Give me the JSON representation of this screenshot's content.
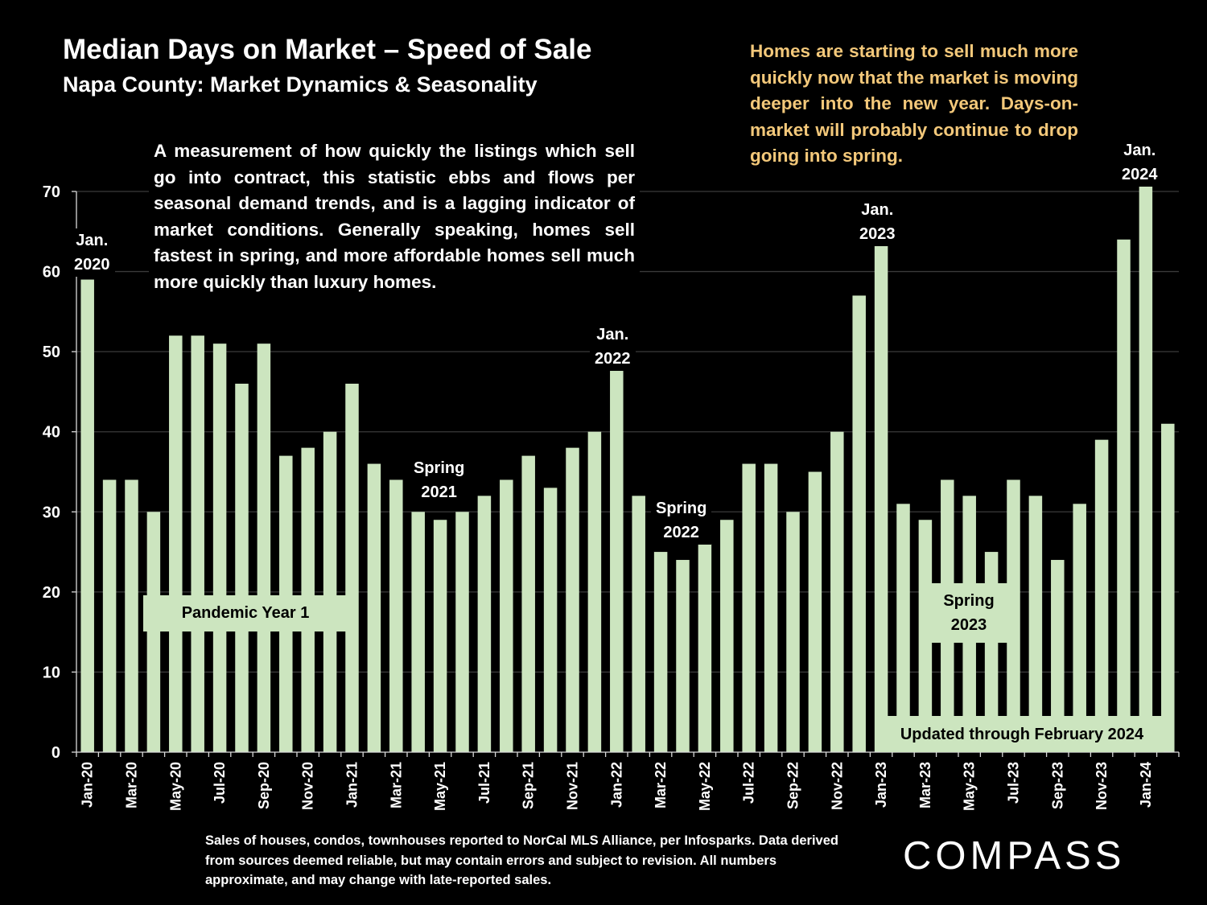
{
  "header": {
    "title": "Median Days on Market – Speed of Sale",
    "subtitle": "Napa County: Market Dynamics & Seasonality"
  },
  "note": {
    "text": "A measurement of how quickly the listings which sell go into contract, this statistic ebbs and flows per seasonal demand trends, and is a lagging indicator of market conditions. Generally speaking, homes sell fastest in spring, and more affordable homes sell much more quickly than luxury homes."
  },
  "callout": {
    "text": "Homes are starting to sell much more quickly now that the market is moving deeper into the new year. Days-on-market will probably continue to drop going into spring."
  },
  "annotations": {
    "jan2020": [
      "Jan.",
      "2020"
    ],
    "spring2021": [
      "Spring",
      "2021"
    ],
    "jan2022": [
      "Jan.",
      "2022"
    ],
    "spring2022": [
      "Spring",
      "2022"
    ],
    "jan2023": [
      "Jan.",
      "2023"
    ],
    "spring2023": [
      "Spring",
      "2023"
    ],
    "jan2024": [
      "Jan.",
      "2024"
    ],
    "pandemic": "Pandemic Year 1",
    "updated": "Updated through February 2024"
  },
  "footnote": {
    "text": "Sales of houses, condos, townhouses reported to NorCal MLS Alliance, per Infosparks. Data derived from sources deemed reliable, but may contain errors and subject to revision. All numbers approximate, and may change with late-reported sales."
  },
  "brand": {
    "logo": "COMPASS"
  },
  "colors": {
    "background": "#000000",
    "bar": "#cce5bf",
    "text": "#ffffff",
    "callout": "#f3c87a",
    "gridline": "#3a3a3a"
  },
  "chart_data": {
    "type": "bar",
    "title": "Median Days on Market – Speed of Sale",
    "subtitle": "Napa County: Market Dynamics & Seasonality",
    "xlabel": "",
    "ylabel": "",
    "ylim": [
      0,
      70
    ],
    "yticks": [
      0,
      10,
      20,
      30,
      40,
      50,
      60,
      70
    ],
    "grid": true,
    "legend": "none",
    "categories": [
      "Jan-20",
      "Feb-20",
      "Mar-20",
      "Apr-20",
      "May-20",
      "Jun-20",
      "Jul-20",
      "Aug-20",
      "Sep-20",
      "Oct-20",
      "Nov-20",
      "Dec-20",
      "Jan-21",
      "Feb-21",
      "Mar-21",
      "Apr-21",
      "May-21",
      "Jun-21",
      "Jul-21",
      "Aug-21",
      "Sep-21",
      "Oct-21",
      "Nov-21",
      "Dec-21",
      "Jan-22",
      "Feb-22",
      "Mar-22",
      "Apr-22",
      "May-22",
      "Jun-22",
      "Jul-22",
      "Aug-22",
      "Sep-22",
      "Oct-22",
      "Nov-22",
      "Dec-22",
      "Jan-23",
      "Feb-23",
      "Mar-23",
      "Apr-23",
      "May-23",
      "Jun-23",
      "Jul-23",
      "Aug-23",
      "Sep-23",
      "Oct-23",
      "Nov-23",
      "Dec-23",
      "Jan-24",
      "Feb-24"
    ],
    "tick_labels": [
      "Jan-20",
      "",
      "Mar-20",
      "",
      "May-20",
      "",
      "Jul-20",
      "",
      "Sep-20",
      "",
      "Nov-20",
      "",
      "Jan-21",
      "",
      "Mar-21",
      "",
      "May-21",
      "",
      "Jul-21",
      "",
      "Sep-21",
      "",
      "Nov-21",
      "",
      "Jan-22",
      "",
      "Mar-22",
      "",
      "May-22",
      "",
      "Jul-22",
      "",
      "Sep-22",
      "",
      "Nov-22",
      "",
      "Jan-23",
      "",
      "Mar-23",
      "",
      "May-23",
      "",
      "Jul-23",
      "",
      "Sep-23",
      "",
      "Nov-23",
      "",
      "Jan-24",
      ""
    ],
    "values": [
      59,
      34,
      34,
      30,
      52,
      52,
      51,
      46,
      51,
      37,
      38,
      40,
      46,
      36,
      34,
      30,
      29,
      30,
      32,
      34,
      37,
      33,
      38,
      40,
      48,
      32,
      25,
      24,
      26,
      29,
      36,
      36,
      30,
      35,
      40,
      57,
      64,
      31,
      29,
      34,
      32,
      25,
      34,
      32,
      24,
      31,
      39,
      64,
      72,
      41
    ]
  }
}
